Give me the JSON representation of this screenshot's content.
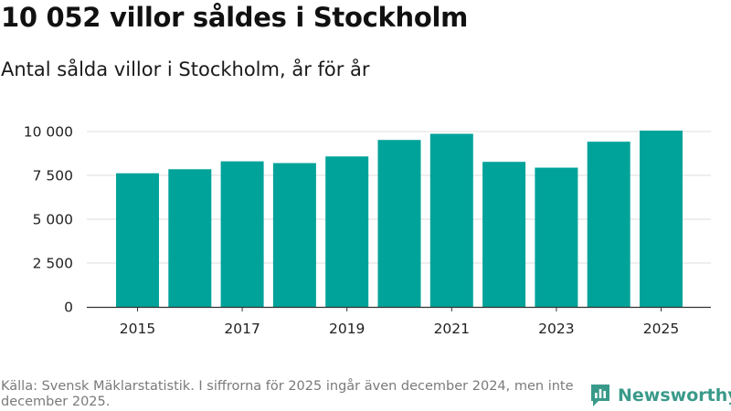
{
  "title": "10 052 villor såldes i Stockholm",
  "subtitle": "Antal sålda villor i Stockholm, år för år",
  "source": "Källa: Svensk Mäklarstatistik. I siffrorna för 2025 ingår även december 2024, men inte december 2025.",
  "brand": {
    "name": "Newsworthy",
    "color": "#3a9a8a"
  },
  "colors": {
    "bar": "#00a39a",
    "grid": "#dddddd",
    "axis": "#333333",
    "label": "#222222"
  },
  "chart_data": {
    "type": "bar",
    "title": "Antal sålda villor i Stockholm, år för år",
    "xlabel": "",
    "ylabel": "",
    "categories": [
      "2015",
      "2016",
      "2017",
      "2018",
      "2019",
      "2020",
      "2021",
      "2022",
      "2023",
      "2024",
      "2025"
    ],
    "values": [
      7620,
      7850,
      8300,
      8200,
      8580,
      9520,
      9870,
      8270,
      7940,
      9420,
      10052
    ],
    "ylim": [
      0,
      10000
    ],
    "yticks": [
      0,
      2500,
      5000,
      7500,
      10000
    ],
    "ytick_labels": [
      "0",
      "2 500",
      "5 000",
      "7 500",
      "10 000"
    ],
    "xtick_labels": [
      "2015",
      "2017",
      "2019",
      "2021",
      "2023",
      "2025"
    ],
    "grid": true
  }
}
